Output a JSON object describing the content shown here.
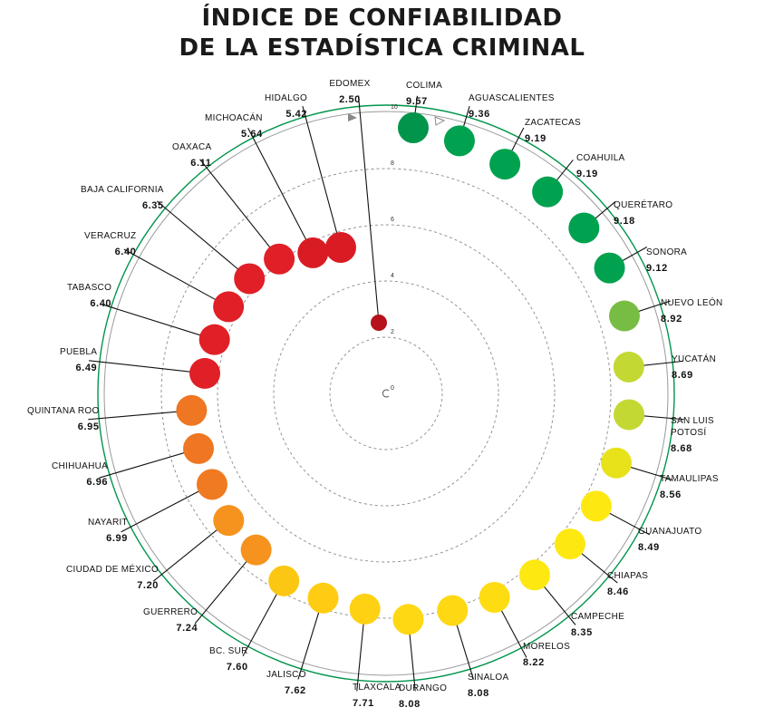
{
  "chart_data": {
    "type": "radial-scatter",
    "title_line1": "ÍNDICE DE CONFIABILIDAD",
    "title_line2": "DE LA ESTADÍSTICA CRIMINAL",
    "ticks": [
      "0",
      "2",
      "4",
      "6",
      "8",
      "10"
    ],
    "range": [
      0,
      10
    ],
    "colors": {
      "dark_red": "#b5121b",
      "red": "#e01f26",
      "orange": "#ef7622",
      "orange_light": "#f5931e",
      "yellow_orange": "#fcc712",
      "yellow": "#fee812",
      "yellow_green": "#c4d834",
      "light_green": "#77bd43",
      "green": "#00a24f",
      "dark_green": "#00954b",
      "ring": "#00954b"
    },
    "states": [
      {
        "name": [
          "EDOMEX"
        ],
        "value": "2.50",
        "color": "#b5121b"
      },
      {
        "name": [
          "COLIMA"
        ],
        "value": "9.57",
        "color": "#00954b"
      },
      {
        "name": [
          "AGUASCALIENTES"
        ],
        "value": "9.36",
        "color": "#00a24f"
      },
      {
        "name": [
          "ZACATECAS"
        ],
        "value": "9.19",
        "color": "#00a24f"
      },
      {
        "name": [
          "COAHUILA"
        ],
        "value": "9.19",
        "color": "#00a24f"
      },
      {
        "name": [
          "QUERÉTARO"
        ],
        "value": "9.18",
        "color": "#00a24f"
      },
      {
        "name": [
          "SONORA"
        ],
        "value": "9.12",
        "color": "#00a24f"
      },
      {
        "name": [
          "NUEVO LEÓN"
        ],
        "value": "8.92",
        "color": "#77bd43"
      },
      {
        "name": [
          "YUCATÁN"
        ],
        "value": "8.69",
        "color": "#c4d834"
      },
      {
        "name": [
          "SAN LUIS",
          "POTOSÍ"
        ],
        "value": "8.68",
        "color": "#c4d834"
      },
      {
        "name": [
          "TAMAULIPAS"
        ],
        "value": "8.56",
        "color": "#e7e21a"
      },
      {
        "name": [
          "GUANAJUATO"
        ],
        "value": "8.49",
        "color": "#fee812"
      },
      {
        "name": [
          "CHIAPAS"
        ],
        "value": "8.46",
        "color": "#fee812"
      },
      {
        "name": [
          "CAMPECHE"
        ],
        "value": "8.35",
        "color": "#fee812"
      },
      {
        "name": [
          "MORELOS"
        ],
        "value": "8.22",
        "color": "#fedc12"
      },
      {
        "name": [
          "SINALOA"
        ],
        "value": "8.08",
        "color": "#fed812"
      },
      {
        "name": [
          "DURANGO"
        ],
        "value": "8.08",
        "color": "#fed812"
      },
      {
        "name": [
          "TLAXCALA"
        ],
        "value": "7.71",
        "color": "#fed112"
      },
      {
        "name": [
          "JALISCO"
        ],
        "value": "7.62",
        "color": "#fecc12"
      },
      {
        "name": [
          "BC. SUR"
        ],
        "value": "7.60",
        "color": "#fcc712"
      },
      {
        "name": [
          "GUERRERO"
        ],
        "value": "7.24",
        "color": "#f5931e"
      },
      {
        "name": [
          "CIUDAD DE MÉXICO"
        ],
        "value": "7.20",
        "color": "#f5931e"
      },
      {
        "name": [
          "NAYARIT"
        ],
        "value": "6.99",
        "color": "#f07a22"
      },
      {
        "name": [
          "CHIHUAHUA"
        ],
        "value": "6.96",
        "color": "#ef7622"
      },
      {
        "name": [
          "QUINTANA ROO"
        ],
        "value": "6.95",
        "color": "#ef7622"
      },
      {
        "name": [
          "PUEBLA"
        ],
        "value": "6.49",
        "color": "#e01f26"
      },
      {
        "name": [
          "TABASCO"
        ],
        "value": "6.40",
        "color": "#e01f26"
      },
      {
        "name": [
          "VERACRUZ"
        ],
        "value": "6.40",
        "color": "#e01f26"
      },
      {
        "name": [
          "BAJA CALIFORNIA"
        ],
        "value": "6.35",
        "color": "#e01f26"
      },
      {
        "name": [
          "OAXACA"
        ],
        "value": "6.11",
        "color": "#e01f26"
      },
      {
        "name": [
          "MICHOACÁN"
        ],
        "value": "5.64",
        "color": "#d91c24"
      },
      {
        "name": [
          "HIDALGO"
        ],
        "value": "5.42",
        "color": "#d91c24"
      }
    ]
  }
}
